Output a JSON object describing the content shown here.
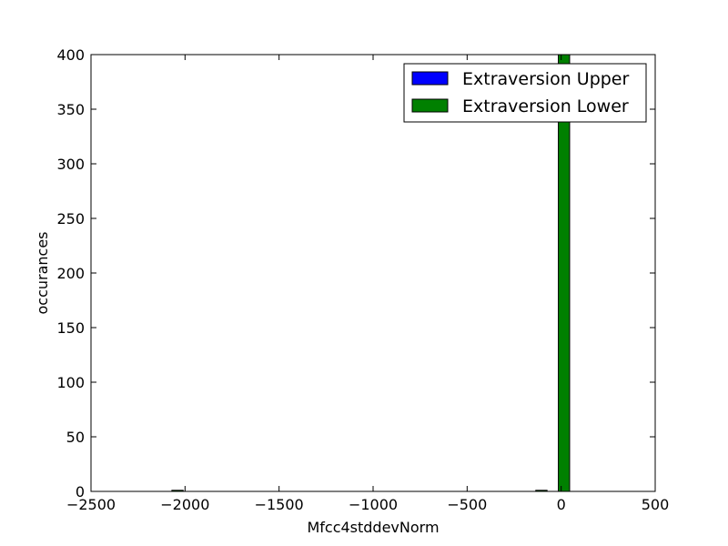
{
  "chart_data": {
    "type": "bar",
    "title": "",
    "xlabel": "Mfcc4stddevNorm",
    "ylabel": "occurances",
    "xlim": [
      -2500,
      500
    ],
    "ylim": [
      0,
      400
    ],
    "xticks": [
      -2500,
      -2000,
      -1500,
      -1000,
      -500,
      0,
      500
    ],
    "xtick_labels": [
      "−2500",
      "−2000",
      "−1500",
      "−1000",
      "−500",
      "0",
      "500"
    ],
    "yticks": [
      0,
      50,
      100,
      150,
      200,
      250,
      300,
      350,
      400
    ],
    "ytick_labels": [
      "0",
      "50",
      "100",
      "150",
      "200",
      "250",
      "300",
      "350",
      "400"
    ],
    "grid": false,
    "legend_position": "top-right",
    "series": [
      {
        "name": "Extraversion Upper",
        "color": "#0000ff",
        "bins": []
      },
      {
        "name": "Extraversion Lower",
        "color": "#008000",
        "bins": [
          {
            "x0": -2070,
            "x1": -2010,
            "value": 1
          },
          {
            "x0": -135,
            "x1": -75,
            "value": 1
          },
          {
            "x0": -15,
            "x1": 45,
            "value": 400
          }
        ]
      }
    ]
  }
}
